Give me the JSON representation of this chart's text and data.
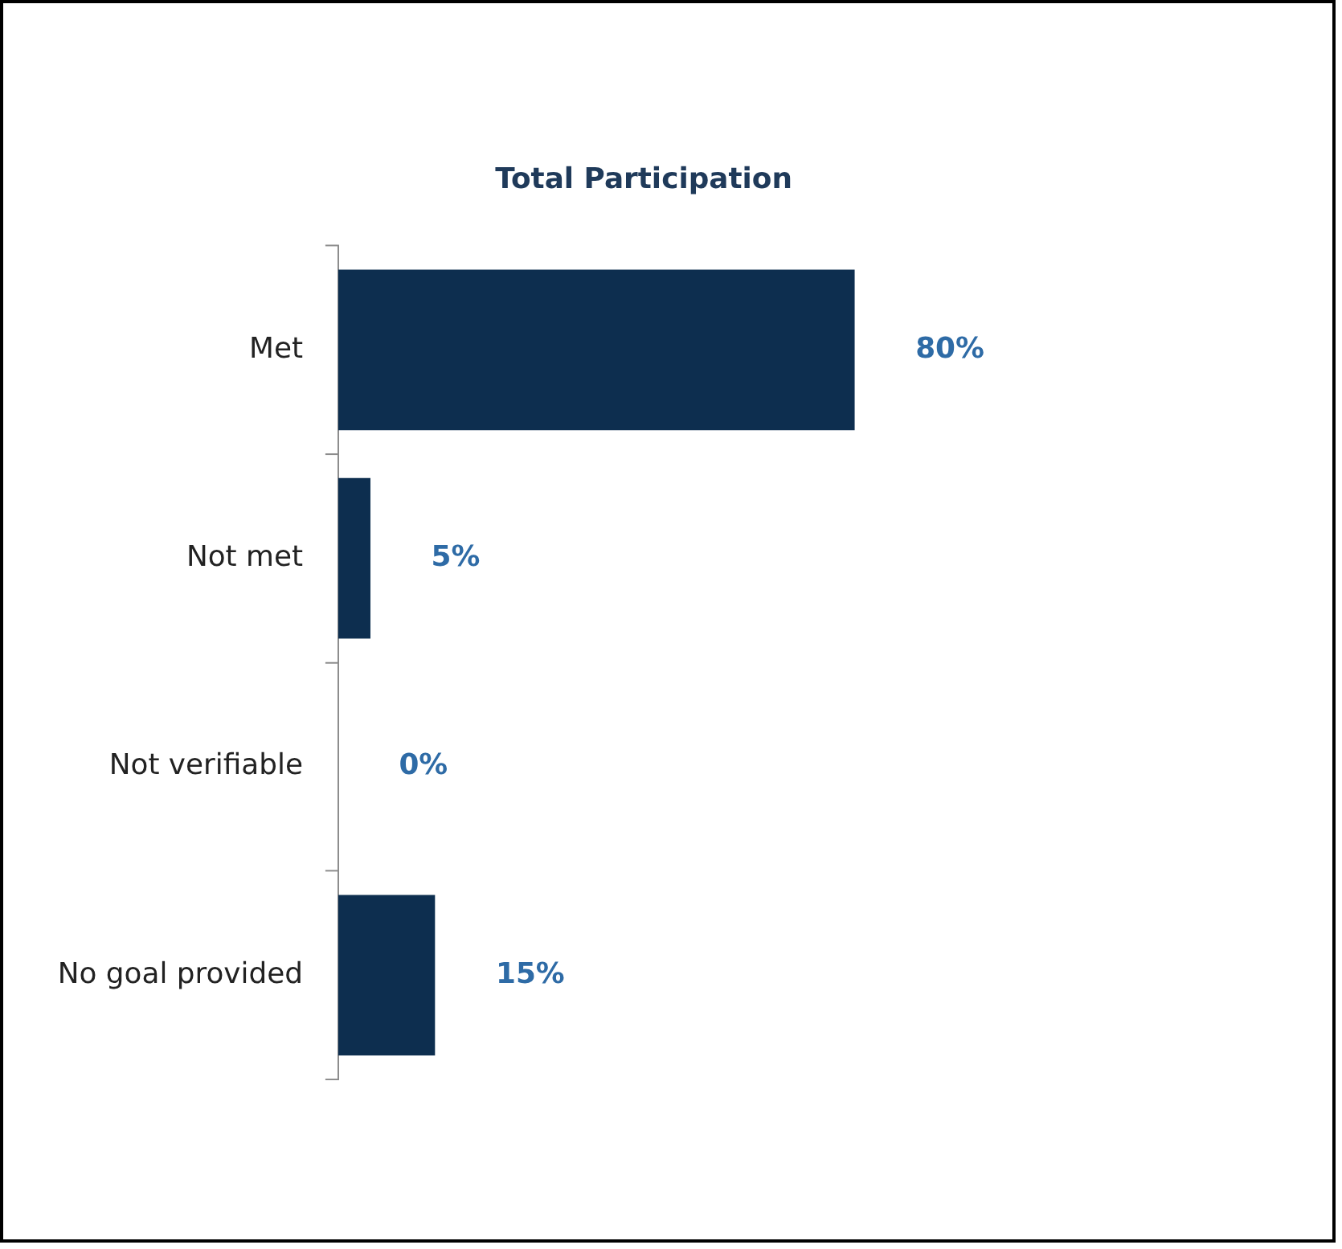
{
  "chart_data": {
    "type": "bar",
    "orientation": "horizontal",
    "title": "Total Participation",
    "categories": [
      "Met",
      "Not met",
      "Not verifiable",
      "No goal provided"
    ],
    "values": [
      80,
      5,
      0,
      15
    ],
    "value_labels": [
      "80%",
      "5%",
      "0%",
      "15%"
    ],
    "color": "#0d2e4f"
  }
}
